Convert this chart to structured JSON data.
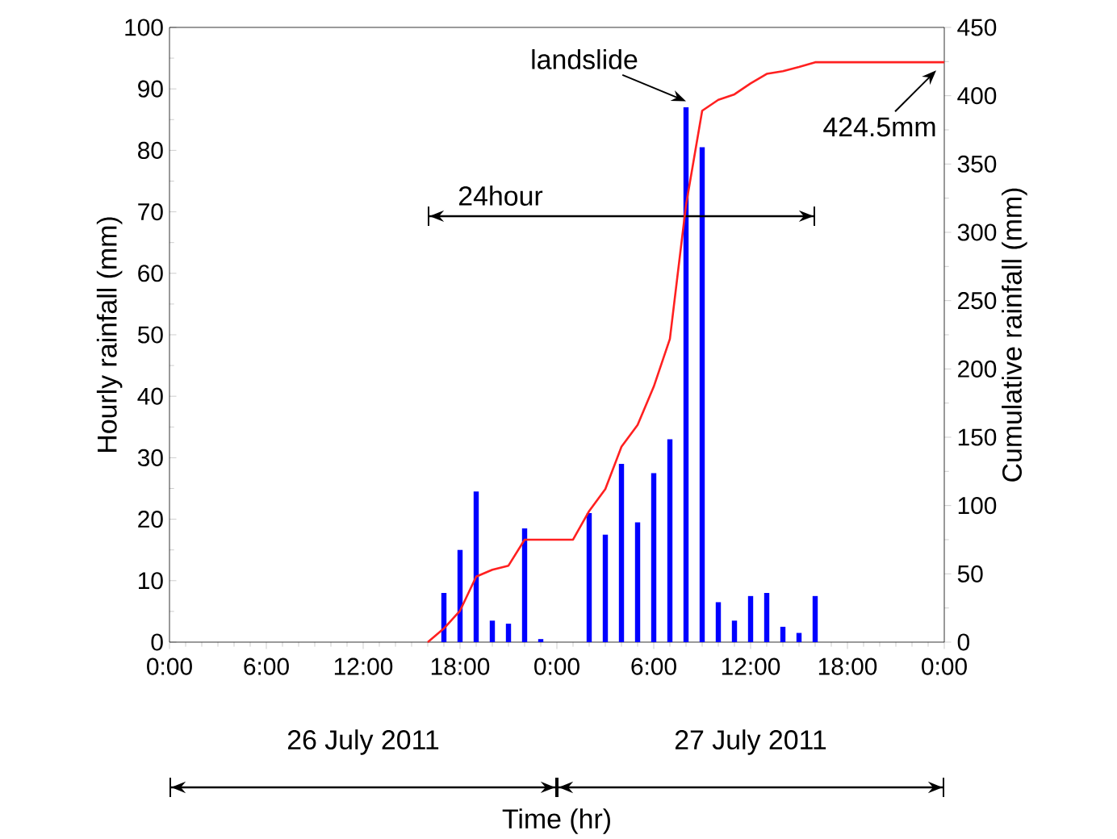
{
  "chart_data": {
    "type": "bar",
    "xlabel": "Time (hr)",
    "ylabel": "Hourly rainfall (mm)",
    "y2label": "Cumulative rainfall (mm)",
    "xlim": [
      "2011-07-26T00:00",
      "2011-07-28T00:00"
    ],
    "xticks": [
      {
        "value": "2011-07-26T00:00",
        "label": "0:00"
      },
      {
        "value": "2011-07-26T06:00",
        "label": "6:00"
      },
      {
        "value": "2011-07-26T12:00",
        "label": "12:00"
      },
      {
        "value": "2011-07-26T18:00",
        "label": "18:00"
      },
      {
        "value": "2011-07-27T00:00",
        "label": "0:00"
      },
      {
        "value": "2011-07-27T06:00",
        "label": "6:00"
      },
      {
        "value": "2011-07-27T12:00",
        "label": "12:00"
      },
      {
        "value": "2011-07-27T18:00",
        "label": "18:00"
      },
      {
        "value": "2011-07-28T00:00",
        "label": "0:00"
      }
    ],
    "ylim": [
      0,
      100
    ],
    "yticks": [
      0,
      10,
      20,
      30,
      40,
      50,
      60,
      70,
      80,
      90,
      100
    ],
    "y2lim": [
      0,
      450
    ],
    "y2ticks": [
      0,
      50,
      100,
      150,
      200,
      250,
      300,
      350,
      400,
      450
    ],
    "series": [
      {
        "color": "#0000ff",
        "x": [
          "2011-07-26T17:00",
          "2011-07-26T18:00",
          "2011-07-26T19:00",
          "2011-07-26T20:00",
          "2011-07-26T21:00",
          "2011-07-26T22:00",
          "2011-07-26T23:00",
          "2011-07-27T02:00",
          "2011-07-27T03:00",
          "2011-07-27T04:00",
          "2011-07-27T05:00",
          "2011-07-27T06:00",
          "2011-07-27T07:00",
          "2011-07-27T08:00",
          "2011-07-27T09:00",
          "2011-07-27T10:00",
          "2011-07-27T11:00",
          "2011-07-27T12:00",
          "2011-07-27T13:00",
          "2011-07-27T14:00",
          "2011-07-27T15:00",
          "2011-07-27T16:00"
        ],
        "values": [
          8,
          15,
          24.5,
          3.5,
          3,
          18.5,
          0.5,
          21,
          17.5,
          29,
          19.5,
          27.5,
          33,
          87,
          80.5,
          6.5,
          3.5,
          7.5,
          8,
          2.5,
          1.5,
          7.5
        ]
      },
      {
        "type": "line",
        "axis": "y2",
        "color": "#ff2020",
        "x": [
          "2011-07-26T16:00",
          "2011-07-26T17:00",
          "2011-07-26T18:00",
          "2011-07-26T19:00",
          "2011-07-26T20:00",
          "2011-07-26T21:00",
          "2011-07-26T22:00",
          "2011-07-27T01:00",
          "2011-07-27T02:00",
          "2011-07-27T03:00",
          "2011-07-27T04:00",
          "2011-07-27T05:00",
          "2011-07-27T06:00",
          "2011-07-27T07:00",
          "2011-07-27T08:00",
          "2011-07-27T09:00",
          "2011-07-27T10:00",
          "2011-07-27T11:00",
          "2011-07-27T12:00",
          "2011-07-27T13:00",
          "2011-07-27T14:00",
          "2011-07-27T15:00",
          "2011-07-27T16:00",
          "2011-07-28T00:00"
        ],
        "values": [
          0,
          10,
          23,
          48,
          53,
          56,
          75,
          75,
          96,
          112,
          143,
          159,
          187,
          222,
          320,
          389,
          397,
          401,
          409,
          416,
          418,
          421,
          424.5,
          424.5
        ]
      }
    ],
    "annotations": [
      {
        "text": "landslide",
        "x": "2011-07-27T08:00",
        "y": 88
      },
      {
        "text": "424.5mm",
        "x": "2011-07-27T23:30",
        "y": 93
      },
      "24hour",
      "26 July 2011",
      "27 July 2011"
    ]
  }
}
